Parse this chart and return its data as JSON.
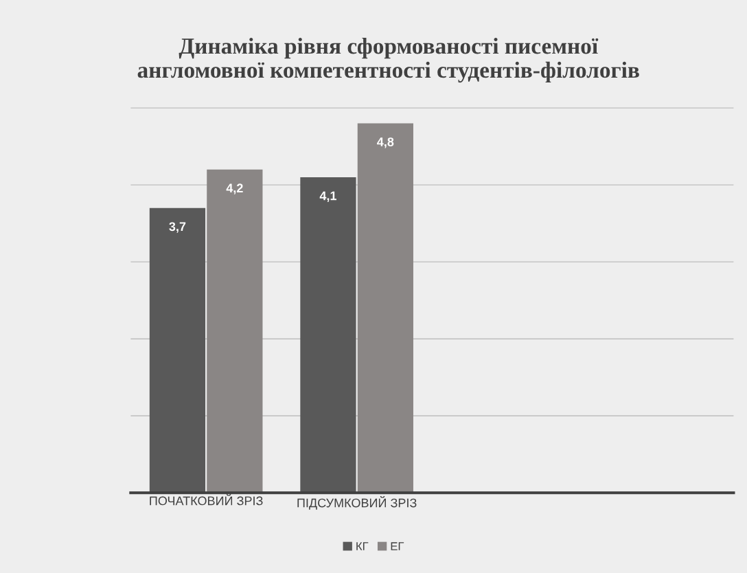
{
  "chart_data": {
    "type": "bar",
    "title": "Динаміка рівня сформованості писемної\nангломовної компетентності студентів-філологів",
    "categories": [
      "ПОЧАТКОВИЙ ЗРІЗ",
      "ПІДСУМКОВИЙ ЗРІЗ",
      null,
      null
    ],
    "series": [
      {
        "name": "КГ",
        "color": "#595959",
        "values": [
          3.7,
          4.1,
          null,
          null
        ],
        "value_labels": [
          "3,7",
          "4,1",
          null,
          null
        ]
      },
      {
        "name": "ЕГ",
        "color": "#8a8685",
        "values": [
          4.2,
          4.8,
          null,
          null
        ],
        "value_labels": [
          "4,2",
          "4,8",
          null,
          null
        ]
      }
    ],
    "tick_labels": "x",
    "grid": "y",
    "legend": "bottom"
  }
}
